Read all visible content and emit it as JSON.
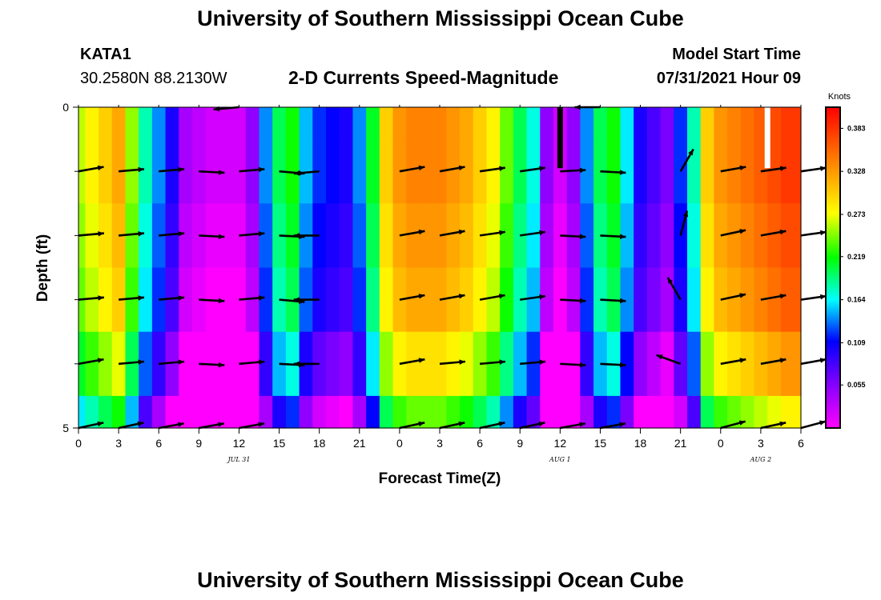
{
  "page": {
    "title_top": "University of Southern Mississippi Ocean Cube",
    "title_bottom": "University of Southern Mississippi Ocean Cube",
    "station_id": "KATA1",
    "station_coords": "30.2580N  88.2130W",
    "product_title": "2-D Currents Speed-Magnitude",
    "model_start_label": "Model Start Time",
    "model_start_value": "07/31/2021 Hour 09"
  },
  "chart_data": {
    "type": "heatmap",
    "title": "2-D Currents Speed-Magnitude",
    "xlabel": "Forecast Time(Z)",
    "ylabel": "Depth (ft)",
    "colorbar_label": "Knots",
    "x_range_hours": [
      0,
      54
    ],
    "ylim": [
      0,
      5
    ],
    "y_tick_labels": [
      {
        "value": 0,
        "label": "0"
      },
      {
        "value": 5,
        "label": "5"
      }
    ],
    "y_minor_ticks": [
      1,
      2,
      3,
      4
    ],
    "x_tick_labels": [
      "0",
      "3",
      "6",
      "9",
      "12",
      "15",
      "18",
      "21",
      "0",
      "3",
      "6",
      "9",
      "12",
      "15",
      "18",
      "21",
      "0",
      "3",
      "6"
    ],
    "date_labels": [
      {
        "hour": 12,
        "label": "JUL 31"
      },
      {
        "hour": 36,
        "label": "AUG 1"
      },
      {
        "hour": 51,
        "label": "AUG 2"
      }
    ],
    "colorbar_range": [
      0,
      0.41
    ],
    "colorbar_ticks": [
      0.383,
      0.328,
      0.273,
      0.219,
      0.164,
      0.109,
      0.055
    ],
    "colorbar_ticks_text": [
      "0.383",
      "0.328",
      "0.273",
      "0.219",
      "0.164",
      "0.109",
      "0.055"
    ],
    "time_hours": [
      0,
      1,
      2,
      3,
      4,
      5,
      6,
      7,
      8,
      9,
      10,
      11,
      12,
      13,
      14,
      15,
      16,
      17,
      18,
      19,
      20,
      21,
      22,
      23,
      24,
      25,
      26,
      27,
      28,
      29,
      30,
      31,
      32,
      33,
      34,
      35,
      36,
      37,
      38,
      39,
      40,
      41,
      42,
      43,
      44,
      45,
      46,
      47,
      48,
      49,
      50,
      51,
      52,
      53,
      54
    ],
    "depth_levels_ft": [
      0,
      1,
      2,
      3,
      4,
      5
    ],
    "surface_speed_knots": [
      0.26,
      0.28,
      0.3,
      0.32,
      0.25,
      0.18,
      0.14,
      0.1,
      0.04,
      0.03,
      0.02,
      0.02,
      0.02,
      0.05,
      0.14,
      0.2,
      0.22,
      0.15,
      0.12,
      0.11,
      0.1,
      0.14,
      0.21,
      0.3,
      0.33,
      0.34,
      0.34,
      0.34,
      0.33,
      0.32,
      0.3,
      0.28,
      0.24,
      0.2,
      0.17,
      0.05,
      0.02,
      0.05,
      0.14,
      0.2,
      0.22,
      0.16,
      0.1,
      0.08,
      0.06,
      0.12,
      0.18,
      0.3,
      0.33,
      0.34,
      0.35,
      0.36,
      0.37,
      0.38,
      0.38
    ],
    "depth_speed_offsets_knots": [
      0,
      0,
      -0.01,
      -0.02,
      -0.05,
      -0.1
    ],
    "vector_times_hours": [
      0,
      3,
      6,
      9,
      12,
      15,
      18,
      21,
      24,
      27,
      30,
      33,
      36,
      39,
      42,
      45,
      48,
      51,
      54
    ],
    "vector_rows": [
      {
        "depth_ft": 0,
        "angles_deg": [
          null,
          null,
          null,
          null,
          185,
          null,
          null,
          null,
          null,
          null,
          null,
          null,
          null,
          180,
          null,
          null,
          null,
          null,
          null
        ]
      },
      {
        "depth_ft": 1,
        "angles_deg": [
          10,
          5,
          5,
          -3,
          5,
          -5,
          185,
          null,
          10,
          10,
          8,
          8,
          3,
          -3,
          null,
          60,
          10,
          8,
          8
        ]
      },
      {
        "depth_ft": 2,
        "angles_deg": [
          5,
          5,
          5,
          -3,
          5,
          -3,
          180,
          null,
          10,
          10,
          8,
          8,
          -3,
          -3,
          null,
          75,
          12,
          10,
          8
        ]
      },
      {
        "depth_ft": 3,
        "angles_deg": [
          5,
          5,
          5,
          -3,
          5,
          -5,
          180,
          null,
          10,
          10,
          10,
          8,
          -3,
          -3,
          null,
          120,
          12,
          10,
          8
        ]
      },
      {
        "depth_ft": 4,
        "angles_deg": [
          10,
          5,
          5,
          -3,
          5,
          -3,
          180,
          null,
          10,
          5,
          5,
          5,
          -3,
          -3,
          null,
          160,
          10,
          10,
          10
        ]
      },
      {
        "depth_ft": 5,
        "angles_deg": [
          12,
          12,
          10,
          10,
          10,
          null,
          null,
          null,
          12,
          12,
          12,
          12,
          10,
          10,
          null,
          null,
          15,
          12,
          15
        ]
      }
    ],
    "marker_bars": [
      {
        "hour": 36,
        "color": "#000000"
      },
      {
        "hour": 51.5,
        "color": "#ffffff"
      }
    ]
  }
}
